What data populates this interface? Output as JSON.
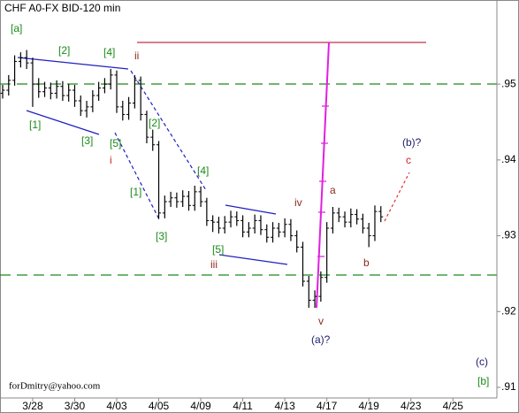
{
  "chart_data": {
    "type": "ohlc",
    "title": "CHF A0-FX BID-120 min",
    "footer": "forDmitry@yahoo.com",
    "color": "#000000",
    "categories": [
      null,
      null,
      null,
      null,
      null,
      "3/28",
      null,
      null,
      null,
      null,
      null,
      null,
      "3/30",
      null,
      null,
      null,
      null,
      null,
      null,
      "4/03",
      null,
      null,
      null,
      null,
      null,
      null,
      "4/05",
      null,
      null,
      null,
      null,
      null,
      null,
      "4/09",
      null,
      null,
      null,
      null,
      null,
      null,
      "4/11",
      null,
      null,
      null,
      null,
      null,
      null,
      "4/13",
      null,
      null,
      null,
      null,
      null,
      null,
      "4/17",
      null,
      null,
      null,
      null,
      null,
      null,
      "4/19",
      null,
      null,
      null,
      null,
      null,
      null,
      "4/23",
      null,
      null,
      null,
      null,
      null,
      null,
      "4/25",
      null,
      null,
      null,
      null,
      null,
      null,
      null
    ],
    "open": [
      0.9488,
      0.9492,
      0.9505,
      0.953,
      0.9535,
      0.9528,
      0.95,
      0.949,
      0.9495,
      0.9488,
      0.9497,
      0.9485,
      0.9492,
      0.9478,
      0.9465,
      0.947,
      0.9485,
      0.9495,
      0.95,
      0.9512,
      0.947,
      0.946,
      0.9475,
      0.9505,
      0.946,
      0.943,
      0.942,
      0.933,
      0.9345,
      0.935,
      0.9345,
      0.9352,
      0.934,
      0.9358,
      0.9345,
      0.932,
      0.9318,
      0.931,
      0.9318,
      0.9325,
      0.932,
      0.9305,
      0.931,
      0.932,
      0.9308,
      0.9298,
      0.931,
      0.9305,
      0.9315,
      0.93,
      0.9285,
      0.924,
      0.9215,
      0.922,
      0.9245,
      0.931,
      0.933,
      0.9325,
      0.9318,
      0.9328,
      0.9322,
      0.931,
      0.93,
      0.9332,
      null,
      null,
      null,
      null,
      null,
      null,
      null,
      null,
      null,
      null,
      null,
      null,
      null,
      null,
      null,
      null,
      null,
      null,
      null
    ],
    "high": [
      0.9499,
      0.9512,
      0.9538,
      0.9542,
      0.9545,
      0.9535,
      0.9508,
      0.9503,
      0.9502,
      0.9505,
      0.9504,
      0.95,
      0.9499,
      0.9485,
      0.9478,
      0.9492,
      0.9503,
      0.9508,
      0.952,
      0.9518,
      0.9478,
      0.9483,
      0.9512,
      0.951,
      0.9465,
      0.944,
      0.9425,
      0.9353,
      0.9358,
      0.9357,
      0.936,
      0.9359,
      0.9366,
      0.9365,
      0.935,
      0.9327,
      0.9325,
      0.9326,
      0.9333,
      0.9332,
      0.9327,
      0.9318,
      0.9328,
      0.9327,
      0.9315,
      0.9318,
      0.9317,
      0.9323,
      0.9322,
      0.9307,
      0.9292,
      0.9247,
      0.9228,
      0.9253,
      0.9318,
      0.9338,
      0.9337,
      0.9332,
      0.9336,
      0.9335,
      0.9329,
      0.9317,
      0.934,
      0.9339,
      null,
      null,
      null,
      null,
      null,
      null,
      null,
      null,
      null,
      null,
      null,
      null,
      null,
      null,
      null,
      null,
      null,
      null,
      null
    ],
    "low": [
      0.9481,
      0.9485,
      0.9498,
      0.9522,
      0.952,
      0.947,
      0.9482,
      0.9483,
      0.948,
      0.9481,
      0.9478,
      0.9477,
      0.947,
      0.9458,
      0.9456,
      0.9463,
      0.9478,
      0.9488,
      0.9493,
      0.9462,
      0.9452,
      0.9453,
      0.9468,
      0.9452,
      0.9422,
      0.9412,
      0.9322,
      0.9323,
      0.9338,
      0.9337,
      0.9338,
      0.9333,
      0.9333,
      0.9338,
      0.9313,
      0.9305,
      0.9303,
      0.9303,
      0.9311,
      0.9313,
      0.9298,
      0.9298,
      0.9303,
      0.9301,
      0.9291,
      0.9291,
      0.9298,
      0.9298,
      0.9293,
      0.9278,
      0.9233,
      0.9205,
      0.9205,
      0.9213,
      0.9238,
      0.9303,
      0.9318,
      0.9311,
      0.9311,
      0.9315,
      0.9303,
      0.9285,
      0.9293,
      0.9318,
      null,
      null,
      null,
      null,
      null,
      null,
      null,
      null,
      null,
      null,
      null,
      null,
      null,
      null,
      null,
      null,
      null,
      null,
      null
    ],
    "close": [
      0.9492,
      0.9505,
      0.953,
      0.9535,
      0.9528,
      0.95,
      0.949,
      0.9495,
      0.9488,
      0.9497,
      0.9485,
      0.9492,
      0.9478,
      0.9465,
      0.947,
      0.9485,
      0.9495,
      0.95,
      0.9512,
      0.947,
      0.946,
      0.9475,
      0.9505,
      0.946,
      0.943,
      0.942,
      0.933,
      0.9345,
      0.935,
      0.9345,
      0.9352,
      0.934,
      0.9358,
      0.9345,
      0.932,
      0.9318,
      0.931,
      0.9318,
      0.9325,
      0.932,
      0.9305,
      0.931,
      0.932,
      0.9308,
      0.9298,
      0.931,
      0.9305,
      0.9315,
      0.93,
      0.9285,
      0.924,
      0.9215,
      0.922,
      0.9245,
      0.931,
      0.933,
      0.9325,
      0.9318,
      0.9328,
      0.9322,
      0.931,
      0.93,
      0.9332,
      0.9325,
      null,
      null,
      null,
      null,
      null,
      null,
      null,
      null,
      null,
      null,
      null,
      null,
      null,
      null,
      null,
      null,
      null,
      null,
      null
    ],
    "ylim": [
      0.9086,
      0.9611
    ],
    "yticks": [
      {
        "value": 0.95,
        "label": ".95"
      },
      {
        "value": 0.94,
        "label": ".94"
      },
      {
        "value": 0.93,
        "label": ".93"
      },
      {
        "value": 0.92,
        "label": ".92"
      },
      {
        "value": 0.91,
        "label": ".91"
      }
    ],
    "annotations": [
      "[a]",
      "[2]",
      "[4]",
      "ii",
      "[1]",
      "[3]",
      "[5]",
      "i",
      "[2]",
      "[1]",
      "[4]",
      "[3]",
      "[5]",
      "iii",
      "iv",
      "a",
      "b",
      "v",
      "(a)?",
      "(b)?",
      "c",
      "(c)",
      "[b]"
    ]
  }
}
